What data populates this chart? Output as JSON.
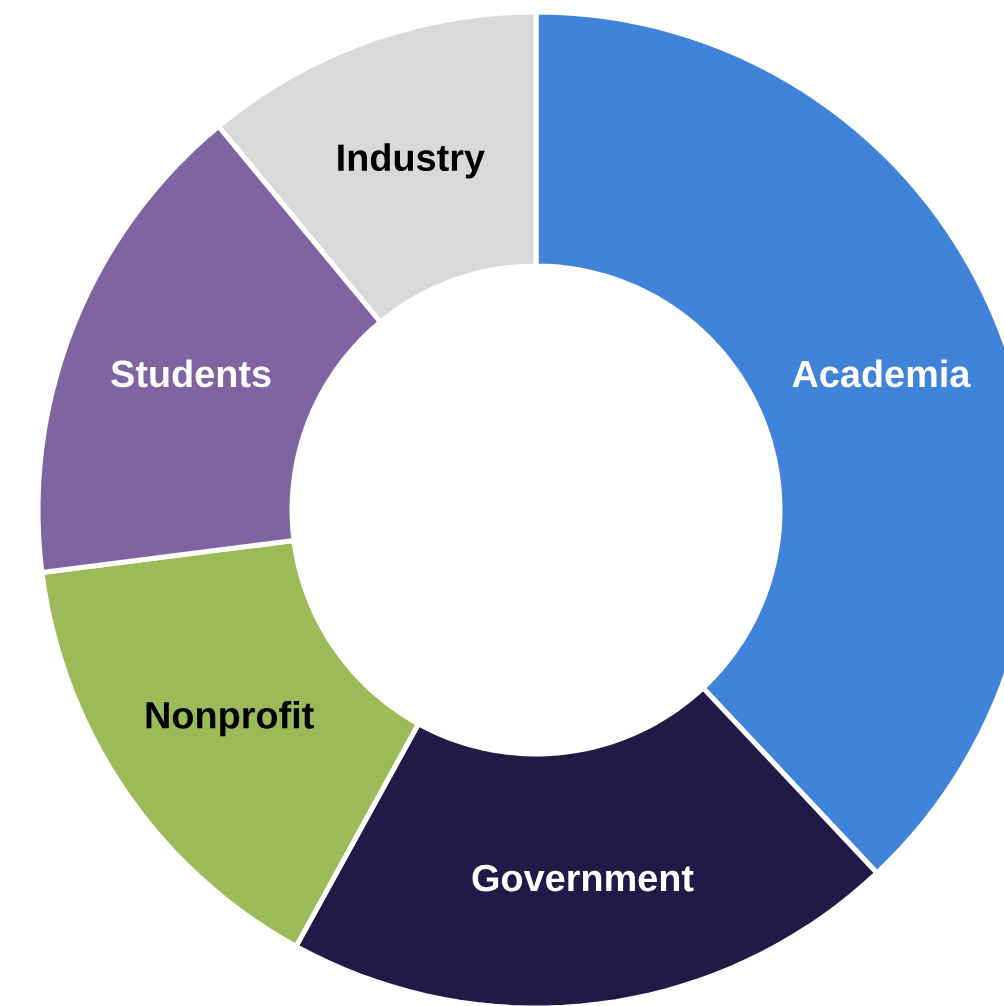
{
  "chart_data": {
    "type": "donut",
    "categories": [
      "Academia",
      "Government",
      "Nonprofit",
      "Students",
      "Industry"
    ],
    "values": [
      38,
      20,
      15,
      16,
      11
    ],
    "colors": [
      "#3f84d9",
      "#211a47",
      "#9bbb59",
      "#8064a2",
      "#d9d9d9"
    ]
  }
}
